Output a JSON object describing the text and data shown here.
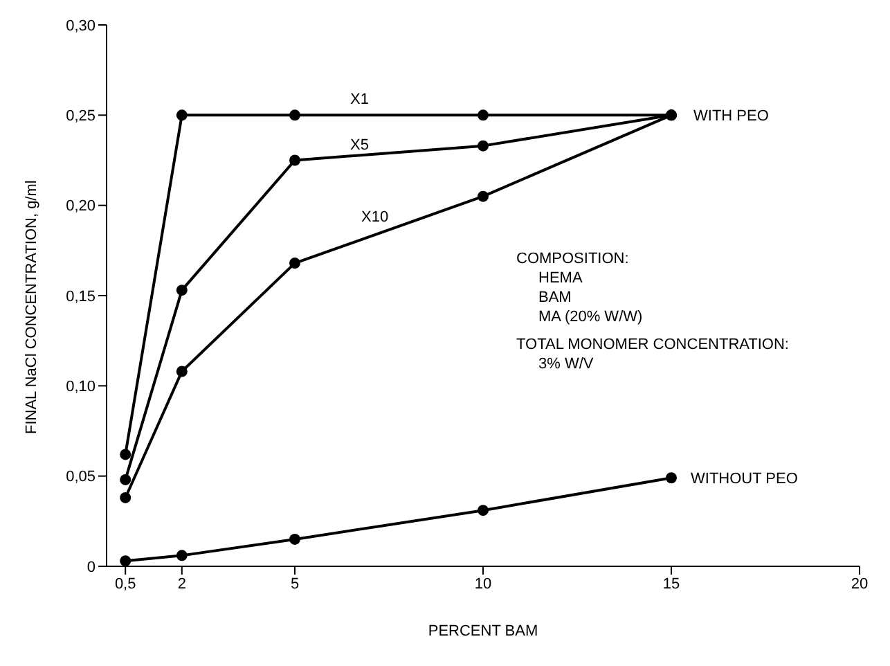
{
  "chart_data": {
    "type": "line",
    "xlabel": "PERCENT BAM",
    "ylabel": "FINAL NaCl CONCENTRATION, g/ml",
    "x": [
      0.5,
      2,
      5,
      10,
      15
    ],
    "series": [
      {
        "name": "X1",
        "color": "#000000",
        "values": [
          0.062,
          0.25,
          0.25,
          0.25,
          0.25
        ]
      },
      {
        "name": "X5",
        "color": "#000000",
        "values": [
          0.048,
          0.153,
          0.225,
          0.233,
          0.25
        ]
      },
      {
        "name": "X10",
        "color": "#000000",
        "values": [
          0.038,
          0.108,
          0.168,
          0.205,
          0.25
        ]
      },
      {
        "name": "WITHOUT PEO",
        "color": "#000000",
        "values": [
          0.003,
          0.006,
          0.015,
          0.031,
          0.049
        ]
      }
    ],
    "xlim": [
      0,
      20
    ],
    "xticks": [
      {
        "value": 0.5,
        "label": "0,5"
      },
      2,
      5,
      10,
      15,
      20
    ],
    "ylim": [
      0,
      0.3
    ],
    "yticks": [
      {
        "value": 0,
        "label": "0"
      },
      {
        "value": 0.05,
        "label": "0,05"
      },
      {
        "value": 0.1,
        "label": "0,10"
      },
      {
        "value": 0.15,
        "label": "0,15"
      },
      {
        "value": 0.2,
        "label": "0,20"
      },
      {
        "value": 0.25,
        "label": "0,25"
      },
      {
        "value": 0.3,
        "label": "0,30"
      }
    ],
    "annotations": [
      {
        "text": "WITH PEO",
        "x": 15,
        "y": 0.25
      },
      "COMPOSITION:",
      "HEMA",
      "BAM",
      "MA (20% W/W)",
      "TOTAL MONOMER CONCENTRATION:",
      "3% W/V"
    ],
    "grid": false,
    "legend": false,
    "marker": "circle",
    "line_style": "solid"
  }
}
